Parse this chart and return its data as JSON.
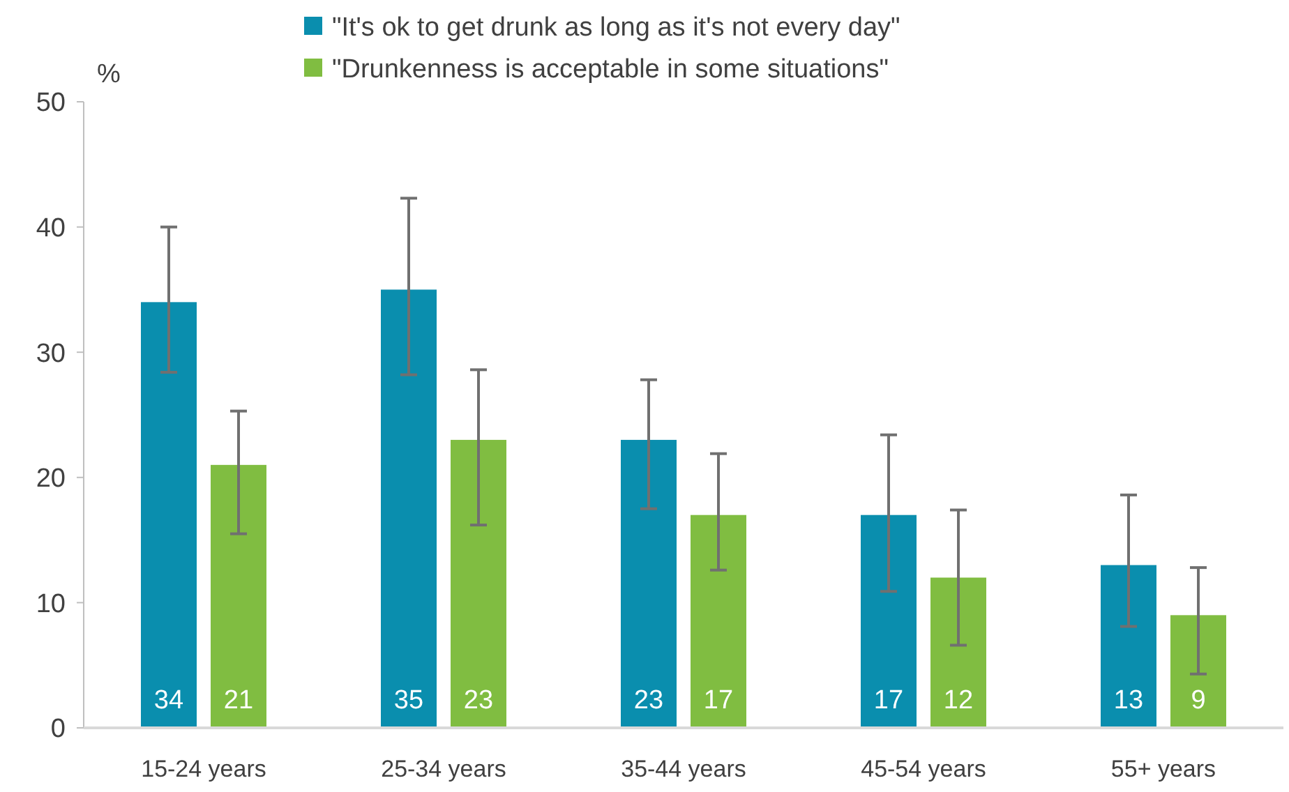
{
  "chart_data": {
    "type": "bar",
    "ylabel": "%",
    "categories": [
      "15-24 years",
      "25-34 years",
      "35-44 years",
      "45-54 years",
      "55+ years"
    ],
    "series": [
      {
        "name": "\"It's ok to get drunk as long as it's not every day\"",
        "color": "#0a8eae",
        "values": [
          34,
          35,
          23,
          17,
          13
        ],
        "errors": [
          [
            28.4,
            40.0
          ],
          [
            28.2,
            42.3
          ],
          [
            17.5,
            27.8
          ],
          [
            10.9,
            23.4
          ],
          [
            8.1,
            18.6
          ]
        ]
      },
      {
        "name": "\"Drunkenness is acceptable in some situations\"",
        "color": "#80bd41",
        "values": [
          21,
          23,
          17,
          12,
          9
        ],
        "errors": [
          [
            15.5,
            25.3
          ],
          [
            16.2,
            28.6
          ],
          [
            12.6,
            21.9
          ],
          [
            6.6,
            17.4
          ],
          [
            4.3,
            12.8
          ]
        ]
      }
    ],
    "ylim": [
      0,
      50
    ],
    "yticks": [
      0,
      10,
      20,
      30,
      40,
      50
    ],
    "grid": false,
    "legend": "top",
    "data_labels": true
  }
}
